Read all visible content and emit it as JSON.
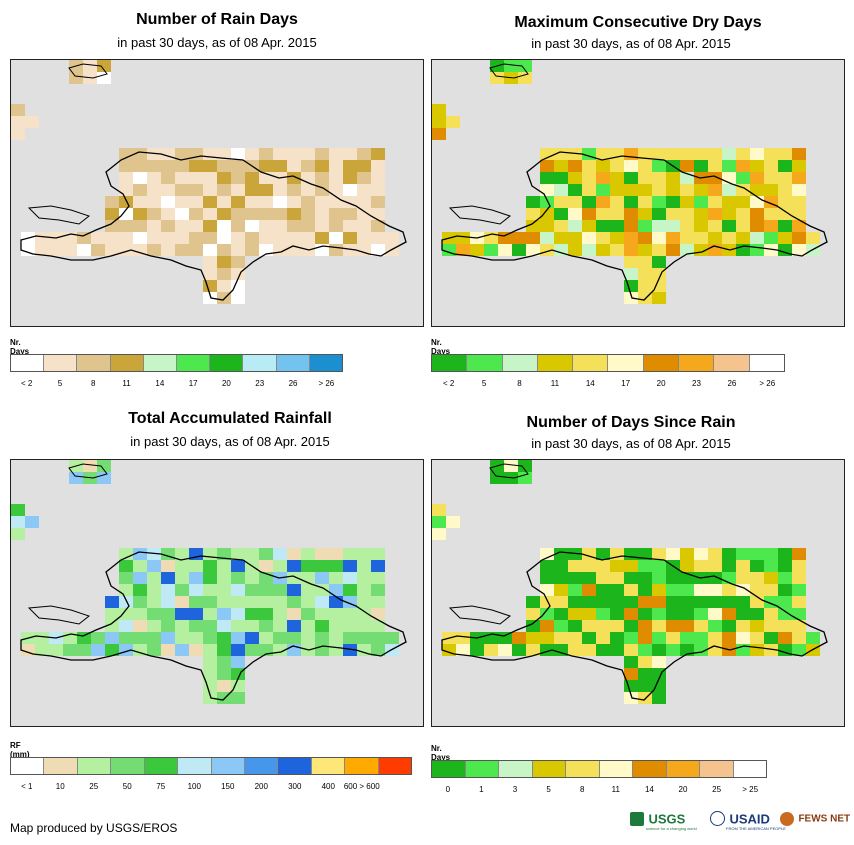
{
  "credit": "Map produced by USGS/EROS",
  "logos": {
    "usgs": "USGS",
    "usgs_tagline": "science for a changing world",
    "usaid": "USAID",
    "usaid_tagline": "FROM THE AMERICAN PEOPLE",
    "fews": "FEWS NET"
  },
  "panels": [
    {
      "title": "Number of Rain Days",
      "subtitle": "in past 30 days, as of 08 Apr. 2015",
      "legend_label": "Nr. Days",
      "colors": [
        "#ffffff",
        "#f5e2c8",
        "#e0c48e",
        "#c9a53a",
        "#c8f5c8",
        "#4de84d",
        "#1cb51c",
        "#b8ecf5",
        "#73c3f0",
        "#1c8fd0"
      ],
      "ticks": [
        "< 2",
        "5",
        "8",
        "11",
        "14",
        "17",
        "20",
        "23",
        "26",
        "> 26"
      ]
    },
    {
      "title": "Maximum Consecutive Dry Days",
      "subtitle": "in past 30 days, as of 08 Apr. 2015",
      "legend_label": "Nr. Days",
      "colors": [
        "#1cb51c",
        "#4de84d",
        "#c8f5c8",
        "#d9c800",
        "#f5e05a",
        "#fffac8",
        "#e08c00",
        "#f5a81c",
        "#f5c38e",
        "#ffffff"
      ],
      "ticks": [
        "< 2",
        "5",
        "8",
        "11",
        "14",
        "17",
        "20",
        "23",
        "26",
        "> 26"
      ]
    },
    {
      "title": "Total Accumulated Rainfall",
      "subtitle": "in past 30 days, as of 08 Apr. 2015",
      "legend_label": "RF (mm)",
      "colors": [
        "#ffffff",
        "#f0dcb4",
        "#b4f0a0",
        "#73dc73",
        "#3cc83c",
        "#bfeaf5",
        "#8cc8f5",
        "#4696eb",
        "#1e64dc",
        "#ffe678",
        "#ffaa00",
        "#ff3c00"
      ],
      "ticks": [
        "< 1",
        "10",
        "25",
        "50",
        "75",
        "100",
        "150",
        "200",
        "300",
        "400",
        "600 > 600"
      ]
    },
    {
      "title": "Number of Days Since Rain",
      "subtitle": "in past 30 days, as of 08 Apr. 2015",
      "legend_label": "Nr. Days",
      "colors": [
        "#1cb51c",
        "#4de84d",
        "#c8f5c8",
        "#d9c800",
        "#f5e05a",
        "#fffac8",
        "#e08c00",
        "#f5a81c",
        "#f5c38e",
        "#ffffff"
      ],
      "ticks": [
        "0",
        "1",
        "3",
        "5",
        "8",
        "11",
        "14",
        "20",
        "25",
        "> 25"
      ]
    }
  ]
}
